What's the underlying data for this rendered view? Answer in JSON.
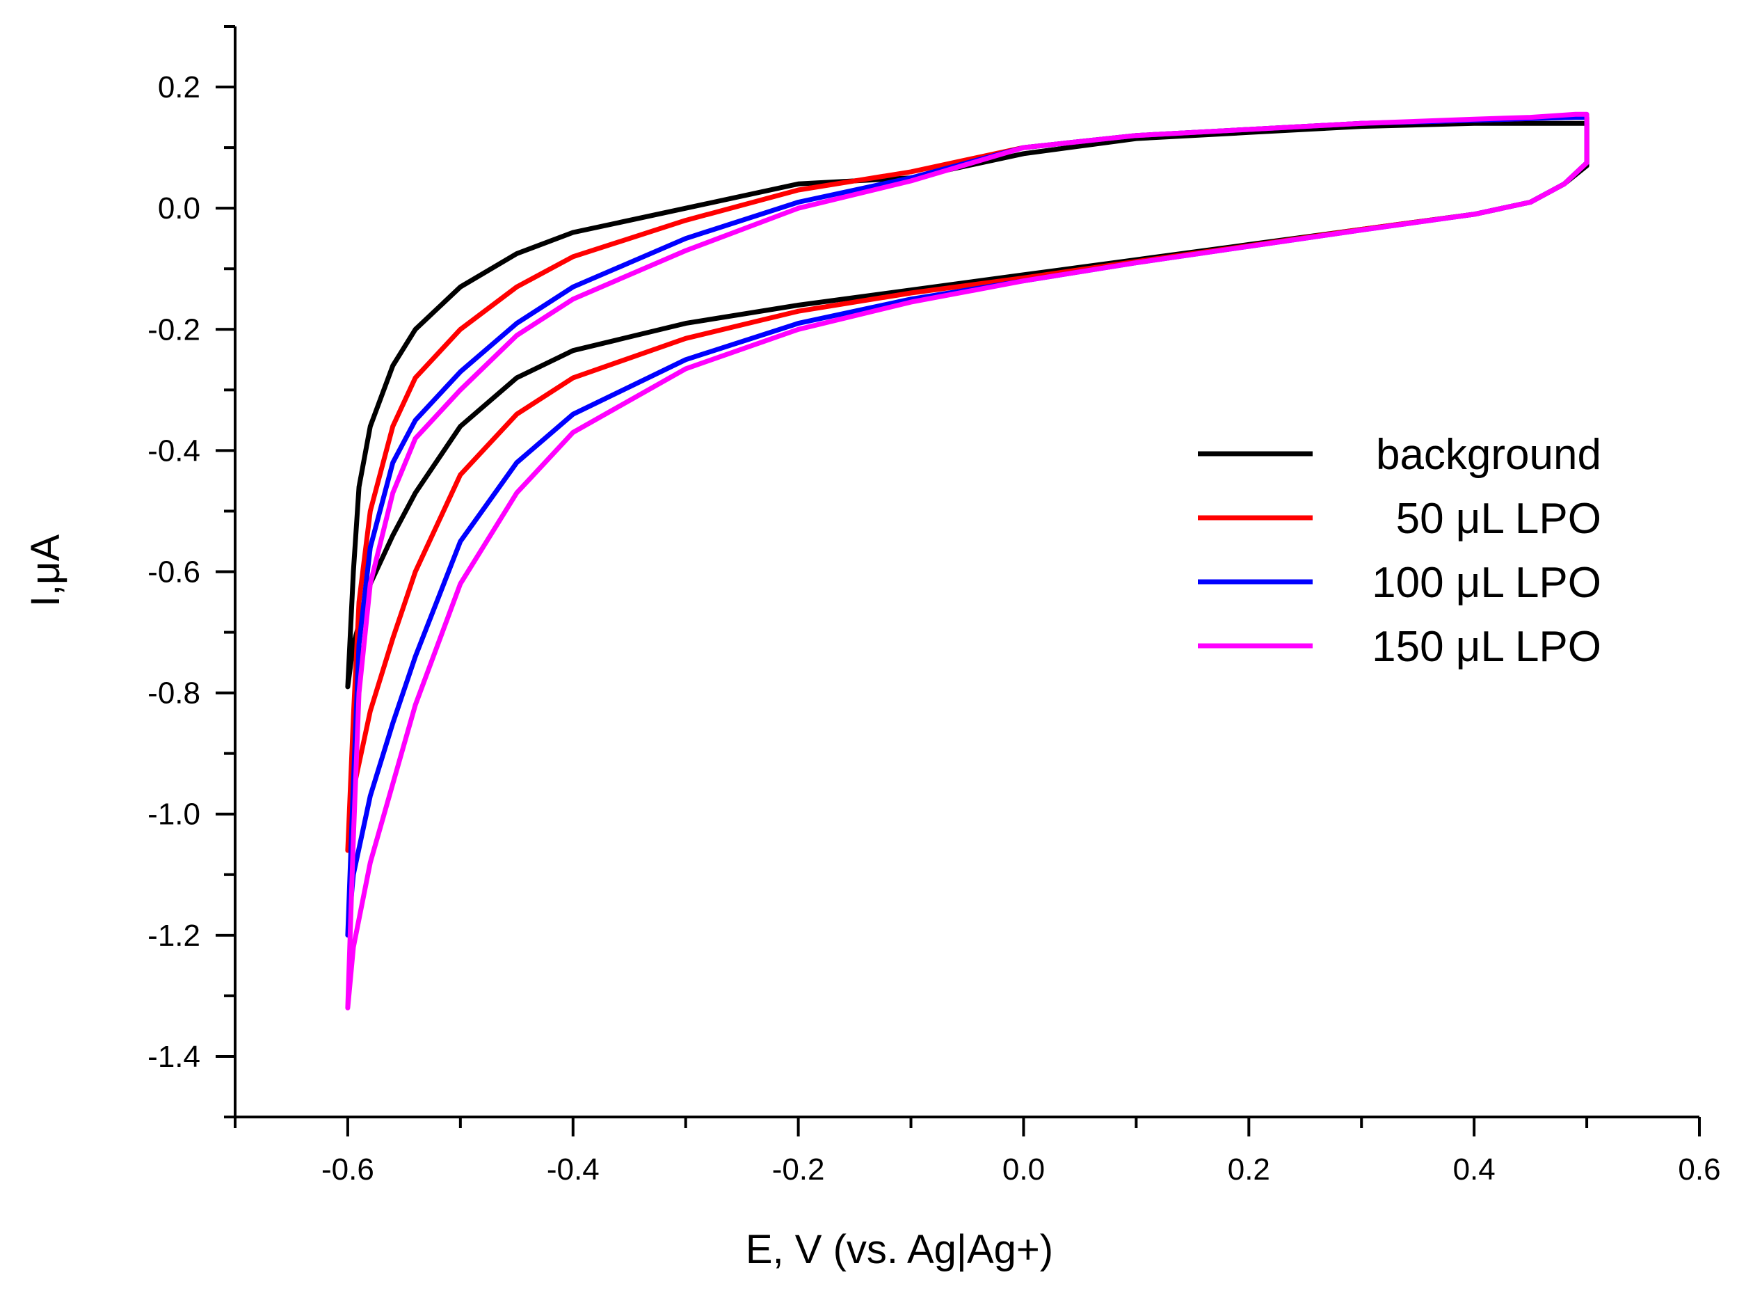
{
  "chart_data": {
    "type": "line",
    "title": "",
    "xlabel": "E, V (vs. Ag|Ag+)",
    "ylabel": "I,μA",
    "xlim": [
      -0.7,
      0.6
    ],
    "ylim": [
      -1.5,
      0.3
    ],
    "xticks": [
      -0.6,
      -0.4,
      -0.2,
      0.0,
      0.2,
      0.4,
      0.6
    ],
    "xtick_labels": [
      "-0.6",
      "-0.4",
      "-0.2",
      "0.0",
      "0.2",
      "0.4",
      "0.6"
    ],
    "yticks": [
      0.2,
      0.0,
      -0.2,
      -0.4,
      -0.6,
      -0.8,
      -1.0,
      -1.2,
      -1.4
    ],
    "ytick_labels": [
      "0.2",
      "0.0",
      "-0.2",
      "-0.4",
      "-0.6",
      "-0.8",
      "-1.0",
      "-1.2",
      "-1.4"
    ],
    "grid": false,
    "legend_position": "right",
    "series": [
      {
        "name": "background",
        "label": "background",
        "color": "#000000",
        "x": [
          -0.6,
          -0.595,
          -0.58,
          -0.56,
          -0.54,
          -0.5,
          -0.45,
          -0.4,
          -0.3,
          -0.2,
          -0.1,
          0.0,
          0.1,
          0.2,
          0.3,
          0.4,
          0.45,
          0.48,
          0.5,
          0.5,
          0.49,
          0.45,
          0.4,
          0.3,
          0.2,
          0.1,
          0.0,
          -0.1,
          -0.2,
          -0.3,
          -0.4,
          -0.45,
          -0.5,
          -0.54,
          -0.56,
          -0.58,
          -0.59,
          -0.595,
          -0.6
        ],
        "y": [
          -0.79,
          -0.72,
          -0.62,
          -0.54,
          -0.47,
          -0.36,
          -0.28,
          -0.235,
          -0.19,
          -0.16,
          -0.135,
          -0.11,
          -0.085,
          -0.06,
          -0.035,
          -0.01,
          0.01,
          0.04,
          0.07,
          0.14,
          0.14,
          0.14,
          0.14,
          0.135,
          0.125,
          0.115,
          0.09,
          0.05,
          0.04,
          0.0,
          -0.04,
          -0.075,
          -0.13,
          -0.2,
          -0.26,
          -0.36,
          -0.46,
          -0.6,
          -0.79
        ]
      },
      {
        "name": "50uL",
        "label": "50 μL LPO",
        "color": "#ff0000",
        "x": [
          -0.6,
          -0.595,
          -0.58,
          -0.56,
          -0.54,
          -0.5,
          -0.45,
          -0.4,
          -0.3,
          -0.2,
          -0.1,
          0.0,
          0.1,
          0.2,
          0.3,
          0.4,
          0.45,
          0.48,
          0.5,
          0.5,
          0.49,
          0.45,
          0.4,
          0.3,
          0.2,
          0.1,
          0.0,
          -0.1,
          -0.2,
          -0.3,
          -0.4,
          -0.45,
          -0.5,
          -0.54,
          -0.56,
          -0.58,
          -0.59,
          -0.595,
          -0.6
        ],
        "y": [
          -1.06,
          -0.96,
          -0.83,
          -0.71,
          -0.6,
          -0.44,
          -0.34,
          -0.28,
          -0.215,
          -0.17,
          -0.14,
          -0.115,
          -0.088,
          -0.062,
          -0.035,
          -0.01,
          0.01,
          0.04,
          0.075,
          0.15,
          0.15,
          0.148,
          0.145,
          0.14,
          0.13,
          0.12,
          0.1,
          0.06,
          0.03,
          -0.02,
          -0.08,
          -0.13,
          -0.2,
          -0.28,
          -0.36,
          -0.5,
          -0.65,
          -0.84,
          -1.06
        ]
      },
      {
        "name": "100uL",
        "label": "100 μL LPO",
        "color": "#0000ff",
        "x": [
          -0.6,
          -0.595,
          -0.58,
          -0.56,
          -0.54,
          -0.5,
          -0.45,
          -0.4,
          -0.3,
          -0.2,
          -0.1,
          0.0,
          0.1,
          0.2,
          0.3,
          0.4,
          0.45,
          0.48,
          0.5,
          0.5,
          0.49,
          0.45,
          0.4,
          0.3,
          0.2,
          0.1,
          0.0,
          -0.1,
          -0.2,
          -0.3,
          -0.4,
          -0.45,
          -0.5,
          -0.54,
          -0.56,
          -0.58,
          -0.59,
          -0.595,
          -0.6
        ],
        "y": [
          -1.2,
          -1.1,
          -0.97,
          -0.85,
          -0.74,
          -0.55,
          -0.42,
          -0.34,
          -0.25,
          -0.19,
          -0.15,
          -0.12,
          -0.09,
          -0.063,
          -0.036,
          -0.01,
          0.01,
          0.04,
          0.075,
          0.15,
          0.15,
          0.148,
          0.145,
          0.14,
          0.13,
          0.12,
          0.1,
          0.05,
          0.01,
          -0.05,
          -0.13,
          -0.19,
          -0.27,
          -0.35,
          -0.42,
          -0.56,
          -0.72,
          -0.95,
          -1.2
        ]
      },
      {
        "name": "150uL",
        "label": "150 μL LPO",
        "color": "#ff00ff",
        "x": [
          -0.6,
          -0.595,
          -0.58,
          -0.56,
          -0.54,
          -0.5,
          -0.45,
          -0.4,
          -0.3,
          -0.2,
          -0.1,
          0.0,
          0.1,
          0.2,
          0.3,
          0.4,
          0.45,
          0.48,
          0.5,
          0.5,
          0.49,
          0.45,
          0.4,
          0.3,
          0.2,
          0.1,
          0.0,
          -0.1,
          -0.2,
          -0.3,
          -0.4,
          -0.45,
          -0.5,
          -0.54,
          -0.56,
          -0.58,
          -0.59,
          -0.595,
          -0.6
        ],
        "y": [
          -1.32,
          -1.22,
          -1.08,
          -0.95,
          -0.82,
          -0.62,
          -0.47,
          -0.37,
          -0.265,
          -0.2,
          -0.155,
          -0.12,
          -0.09,
          -0.063,
          -0.036,
          -0.01,
          0.01,
          0.04,
          0.075,
          0.155,
          0.155,
          0.15,
          0.147,
          0.14,
          0.13,
          0.12,
          0.1,
          0.045,
          0.0,
          -0.07,
          -0.15,
          -0.21,
          -0.3,
          -0.38,
          -0.47,
          -0.62,
          -0.8,
          -1.04,
          -1.32
        ]
      }
    ]
  }
}
